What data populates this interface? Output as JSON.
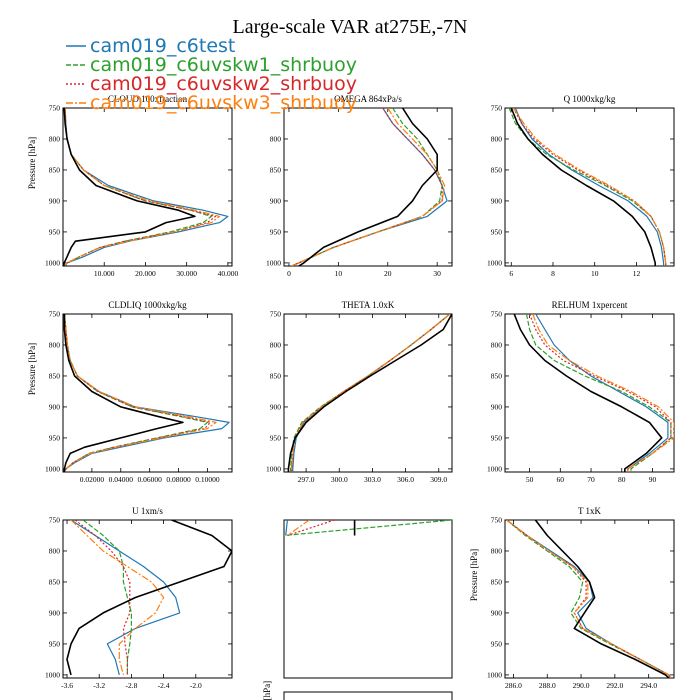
{
  "title": "Large-scale VAR at275E,-7N",
  "legend": [
    {
      "name": "cam019_c6test",
      "color": "#1f77b4",
      "dash": ""
    },
    {
      "name": "cam019_c6uvskw1_shrbuoy",
      "color": "#2ca02c",
      "dash": "5,2"
    },
    {
      "name": "cam019_c6uvskw2_shrbuoy",
      "color": "#d62728",
      "dash": "2,2"
    },
    {
      "name": "cam019_c6uvskw3_shrbuoy",
      "color": "#ff7f0e",
      "dash": "7,2,2,2"
    }
  ],
  "ref_line_color": "#000000",
  "chart_data": [
    {
      "type": "line",
      "title": "CLOUD 100xfraction",
      "ylabel": "Pressure [hPa]",
      "ylim": [
        750,
        1005
      ],
      "yticks": [
        750,
        800,
        850,
        900,
        950,
        1000
      ],
      "yticklabels": [
        "750",
        "800",
        "850",
        "900",
        "950",
        "1000"
      ],
      "xlim": [
        0,
        41
      ],
      "xticks": [
        10,
        20,
        30,
        40
      ],
      "xticklabels": [
        "10.000",
        "20.000",
        "30.000",
        "40.000"
      ],
      "x_title": "",
      "y": [
        750,
        775,
        800,
        825,
        850,
        875,
        900,
        915,
        925,
        935,
        950,
        965,
        975,
        990,
        1000,
        1005
      ],
      "series": [
        {
          "x": [
            0.5,
            0.7,
            1,
            2,
            5,
            11,
            22,
            34,
            40,
            38,
            28,
            16,
            10,
            5,
            1,
            0.5
          ]
        },
        {
          "x": [
            0.5,
            0.6,
            1,
            2,
            5,
            10,
            20,
            31,
            36,
            34,
            26,
            15,
            9,
            4,
            1,
            0.5
          ]
        },
        {
          "x": [
            0.5,
            0.6,
            1,
            2,
            5,
            10,
            20,
            31,
            37,
            35,
            27,
            15,
            9,
            4,
            1,
            0.5
          ]
        },
        {
          "x": [
            0.5,
            0.6,
            1,
            2,
            5,
            10,
            21,
            32,
            38,
            36,
            27,
            16,
            9,
            4,
            1,
            0.5
          ]
        },
        {
          "x": [
            0.3,
            0.5,
            1,
            2,
            4,
            8,
            18,
            28,
            32,
            25,
            20,
            3,
            2,
            1,
            0.3,
            0.2
          ]
        }
      ]
    },
    {
      "type": "line",
      "title": "OMEGA 864xPa/s",
      "ylabel": "",
      "ylim": [
        750,
        1005
      ],
      "yticks": [
        800,
        850,
        900,
        950,
        1000
      ],
      "yticklabels": [
        "800",
        "850",
        "900",
        "950",
        "1000"
      ],
      "xlim": [
        -1,
        33
      ],
      "xticks": [
        0,
        10,
        20,
        30
      ],
      "xticklabels": [
        "0",
        "10",
        "20",
        "30"
      ],
      "x_title": "",
      "y": [
        750,
        775,
        800,
        825,
        850,
        875,
        900,
        925,
        950,
        975,
        1000,
        1005
      ],
      "series": [
        {
          "x": [
            19,
            21,
            24,
            27,
            29.5,
            31,
            32,
            28,
            18,
            9,
            2,
            0.5
          ]
        },
        {
          "x": [
            21,
            23,
            26,
            28,
            30,
            31,
            30.5,
            27,
            18,
            9,
            2,
            0.5
          ]
        },
        {
          "x": [
            19,
            21,
            24,
            27,
            29.5,
            31,
            31,
            27,
            18,
            9,
            2,
            0.5
          ]
        },
        {
          "x": [
            20,
            22,
            25,
            28,
            30,
            31.5,
            31,
            27,
            18,
            9,
            2,
            0.5
          ]
        },
        {
          "x": [
            23,
            25,
            28,
            30,
            30,
            27,
            25,
            22,
            14,
            7,
            3,
            2
          ]
        }
      ]
    },
    {
      "type": "line",
      "title": "Q  1000xkg/kg",
      "ylabel": "",
      "ylim": [
        750,
        1005
      ],
      "yticks": [
        750,
        800,
        850,
        900,
        950,
        1000
      ],
      "yticklabels": [
        "750",
        "800",
        "850",
        "900",
        "950",
        "1000"
      ],
      "xlim": [
        5.7,
        13.8
      ],
      "xticks": [
        6,
        8,
        10,
        12
      ],
      "xticklabels": [
        "6",
        "8",
        "10",
        "12"
      ],
      "x_title": "",
      "y": [
        750,
        775,
        800,
        825,
        850,
        875,
        900,
        925,
        950,
        975,
        1000,
        1005
      ],
      "series": [
        {
          "x": [
            6.2,
            6.5,
            7.0,
            7.8,
            8.9,
            10.2,
            11.6,
            12.5,
            13.0,
            13.2,
            13.3,
            13.3
          ]
        },
        {
          "x": [
            5.9,
            6.2,
            6.8,
            7.7,
            9.0,
            10.5,
            11.8,
            12.7,
            13.1,
            13.3,
            13.4,
            13.4
          ]
        },
        {
          "x": [
            6.1,
            6.5,
            7.1,
            8.0,
            9.2,
            10.6,
            11.9,
            12.7,
            13.1,
            13.3,
            13.4,
            13.4
          ]
        },
        {
          "x": [
            6.1,
            6.6,
            7.2,
            8.1,
            9.3,
            10.7,
            11.9,
            12.7,
            13.1,
            13.3,
            13.4,
            13.4
          ]
        },
        {
          "x": [
            6.0,
            6.3,
            6.8,
            7.5,
            8.4,
            9.6,
            10.9,
            11.8,
            12.4,
            12.7,
            12.9,
            12.9
          ]
        }
      ]
    },
    {
      "type": "line",
      "title": "CLDLIQ 1000xkg/kg",
      "ylabel": "Pressure [hPa]",
      "ylim": [
        750,
        1005
      ],
      "yticks": [
        750,
        800,
        850,
        900,
        950,
        1000
      ],
      "yticklabels": [
        "750",
        "800",
        "850",
        "900",
        "950",
        "1000"
      ],
      "xlim": [
        0,
        0.117
      ],
      "xticks": [
        0.02,
        0.04,
        0.06,
        0.08,
        0.1
      ],
      "xticklabels": [
        "0.02000",
        "0.04000",
        "0.06000",
        "0.08000",
        "0.10000"
      ],
      "x_title": "",
      "y": [
        750,
        775,
        800,
        825,
        850,
        875,
        900,
        915,
        925,
        935,
        950,
        965,
        975,
        990,
        1000,
        1005
      ],
      "series": [
        {
          "x": [
            0.001,
            0.002,
            0.003,
            0.005,
            0.01,
            0.025,
            0.05,
            0.09,
            0.115,
            0.11,
            0.07,
            0.04,
            0.02,
            0.008,
            0.002,
            0.001
          ]
        },
        {
          "x": [
            0.001,
            0.002,
            0.003,
            0.005,
            0.01,
            0.024,
            0.048,
            0.08,
            0.1,
            0.095,
            0.065,
            0.035,
            0.018,
            0.007,
            0.002,
            0.001
          ]
        },
        {
          "x": [
            0.001,
            0.002,
            0.003,
            0.005,
            0.01,
            0.024,
            0.048,
            0.082,
            0.102,
            0.098,
            0.066,
            0.036,
            0.018,
            0.007,
            0.002,
            0.001
          ]
        },
        {
          "x": [
            0.001,
            0.002,
            0.003,
            0.005,
            0.01,
            0.025,
            0.05,
            0.085,
            0.106,
            0.1,
            0.068,
            0.037,
            0.019,
            0.007,
            0.002,
            0.001
          ]
        },
        {
          "x": [
            0.001,
            0.001,
            0.002,
            0.004,
            0.008,
            0.02,
            0.04,
            0.065,
            0.083,
            0.065,
            0.04,
            0.015,
            0.005,
            0.002,
            0.001,
            0.001
          ]
        }
      ]
    },
    {
      "type": "line",
      "title": "THETA  1.0xK",
      "ylabel": "",
      "ylim": [
        750,
        1005
      ],
      "yticks": [
        750,
        800,
        850,
        900,
        950,
        1000
      ],
      "yticklabels": [
        "750",
        "800",
        "850",
        "900",
        "950",
        "1000"
      ],
      "xlim": [
        295.0,
        310.2
      ],
      "xticks": [
        297,
        300,
        303,
        306,
        309
      ],
      "xticklabels": [
        "297.0",
        "300.0",
        "303.0",
        "306.0",
        "309.0"
      ],
      "x_title": "",
      "y": [
        750,
        775,
        800,
        825,
        850,
        875,
        900,
        925,
        950,
        975,
        1000,
        1005
      ],
      "series": [
        {
          "x": [
            310.0,
            308.3,
            306.5,
            304.6,
            302.6,
            300.4,
            298.4,
            296.8,
            296.1,
            295.9,
            295.8,
            295.8
          ]
        },
        {
          "x": [
            310.0,
            308.3,
            306.5,
            304.6,
            302.6,
            300.4,
            298.3,
            296.6,
            295.9,
            295.7,
            295.6,
            295.6
          ]
        },
        {
          "x": [
            310.0,
            308.3,
            306.5,
            304.6,
            302.6,
            300.4,
            298.4,
            296.7,
            296.0,
            295.8,
            295.7,
            295.7
          ]
        },
        {
          "x": [
            310.0,
            308.3,
            306.5,
            304.6,
            302.6,
            300.4,
            298.4,
            296.7,
            296.0,
            295.8,
            295.7,
            295.7
          ]
        },
        {
          "x": [
            310.2,
            309.4,
            307.4,
            305.1,
            302.8,
            300.6,
            298.6,
            297.0,
            296.0,
            295.6,
            295.4,
            295.4
          ]
        }
      ]
    },
    {
      "type": "line",
      "title": "RELHUM  1xpercent",
      "ylabel": "",
      "ylim": [
        750,
        1005
      ],
      "yticks": [
        750,
        800,
        850,
        900,
        950,
        1000
      ],
      "yticklabels": [
        "750",
        "800",
        "850",
        "900",
        "950",
        "1000"
      ],
      "xlim": [
        42,
        97
      ],
      "xticks": [
        50,
        60,
        70,
        80,
        90
      ],
      "xticklabels": [
        "50",
        "60",
        "70",
        "80",
        "90"
      ],
      "x_title": "",
      "y": [
        750,
        775,
        800,
        825,
        850,
        875,
        900,
        925,
        950,
        975,
        1000,
        1005
      ],
      "series": [
        {
          "x": [
            52,
            55,
            58,
            63,
            70,
            79,
            88,
            95,
            95,
            89,
            82,
            82
          ]
        },
        {
          "x": [
            49,
            50,
            52,
            58,
            68,
            80,
            89,
            96,
            96,
            90,
            83,
            83
          ]
        },
        {
          "x": [
            50,
            52,
            55,
            61,
            71,
            82,
            91,
            96,
            96,
            90,
            82,
            82
          ]
        },
        {
          "x": [
            51,
            53,
            56,
            63,
            72,
            83,
            92,
            97,
            97,
            90,
            82,
            82
          ]
        },
        {
          "x": [
            45,
            47,
            50,
            55,
            62,
            70,
            80,
            89,
            93,
            88,
            81,
            81
          ]
        }
      ]
    },
    {
      "type": "line",
      "title": "U  1xm/s",
      "ylabel": "",
      "ylim": [
        750,
        1005
      ],
      "yticks": [
        750,
        800,
        850,
        900,
        950,
        1000
      ],
      "yticklabels": [
        "750",
        "800",
        "850",
        "900",
        "950",
        "1000"
      ],
      "xlim": [
        -3.65,
        -1.55
      ],
      "xticks": [
        -3.6,
        -3.2,
        -2.8,
        -2.4,
        -2.0
      ],
      "xticklabels": [
        "-3.6",
        "-3.2",
        "-2.8",
        "-2.4",
        "-2.0"
      ],
      "x_title": "",
      "y": [
        750,
        775,
        800,
        825,
        850,
        875,
        900,
        925,
        950,
        975,
        1000
      ],
      "series": [
        {
          "x": [
            -3.55,
            -3.25,
            -2.95,
            -2.65,
            -2.4,
            -2.25,
            -2.2,
            -2.75,
            -3.1,
            -3.0,
            -2.95
          ]
        },
        {
          "x": [
            -3.4,
            -3.15,
            -2.95,
            -2.9,
            -2.9,
            -2.85,
            -2.8,
            -2.8,
            -2.82,
            -2.85,
            -2.85
          ]
        },
        {
          "x": [
            -3.5,
            -3.25,
            -3.05,
            -2.9,
            -2.82,
            -2.82,
            -2.82,
            -2.9,
            -2.88,
            -2.85,
            -2.85
          ]
        },
        {
          "x": [
            -3.55,
            -3.35,
            -3.15,
            -2.85,
            -2.55,
            -2.4,
            -2.5,
            -2.75,
            -2.95,
            -2.95,
            -2.9
          ]
        },
        {
          "x": [
            -2.3,
            -1.8,
            -1.55,
            -1.65,
            -2.2,
            -2.75,
            -3.15,
            -3.45,
            -3.55,
            -3.6,
            -3.55
          ]
        }
      ]
    },
    {
      "type": "line",
      "title": "",
      "ylabel": "",
      "ylim": [
        750,
        1005
      ],
      "yticks": [],
      "yticklabels": [],
      "xlim": [
        0,
        1
      ],
      "xticks": [],
      "xticklabels": [],
      "x_title": "",
      "y": [
        750,
        775
      ],
      "series": [
        {
          "x": [
            0.02,
            0.01
          ]
        },
        {
          "x": [
            1.0,
            0.0
          ]
        },
        {
          "x": [
            0.3,
            0.02
          ]
        },
        {
          "x": [
            0.15,
            0.02
          ]
        },
        {
          "x": [
            0.42,
            0.42
          ]
        }
      ]
    },
    {
      "type": "line",
      "title": "T  1xK",
      "ylabel": "Pressure [hPa]",
      "ylim": [
        750,
        1005
      ],
      "yticks": [
        750,
        800,
        850,
        900,
        950,
        1000
      ],
      "yticklabels": [
        "750",
        "800",
        "850",
        "900",
        "950",
        "1000"
      ],
      "xlim": [
        285.5,
        295.5
      ],
      "xticks": [
        286,
        288,
        290,
        292,
        294
      ],
      "xticklabels": [
        "286.0",
        "288.0",
        "290.0",
        "292.0",
        "294.0"
      ],
      "x_title": "",
      "y": [
        750,
        775,
        800,
        825,
        850,
        875,
        900,
        925,
        950,
        975,
        1000,
        1005
      ],
      "series": [
        {
          "x": [
            285.6,
            286.8,
            288.2,
            289.6,
            290.5,
            290.7,
            289.8,
            290.3,
            291.8,
            293.5,
            295.2,
            295.3
          ]
        },
        {
          "x": [
            285.6,
            286.7,
            288.0,
            289.3,
            290.1,
            289.9,
            289.4,
            290.0,
            291.7,
            293.5,
            295.2,
            295.3
          ]
        },
        {
          "x": [
            285.6,
            286.8,
            288.1,
            289.5,
            290.3,
            290.3,
            289.6,
            290.1,
            291.8,
            293.5,
            295.2,
            295.3
          ]
        },
        {
          "x": [
            285.6,
            286.8,
            288.1,
            289.5,
            290.4,
            290.4,
            289.6,
            290.1,
            291.8,
            293.5,
            295.2,
            295.3
          ]
        },
        {
          "x": [
            287.3,
            288.0,
            288.9,
            289.8,
            290.5,
            290.8,
            290.2,
            289.6,
            291.2,
            293.2,
            295.0,
            295.2
          ]
        }
      ]
    },
    {
      "type": "line",
      "title": "",
      "ylabel": "Pressure [hPa]",
      "ylim": [
        750,
        1005
      ],
      "yticks": [],
      "yticklabels": [],
      "xlim": [
        0,
        1
      ],
      "xticks": [],
      "xticklabels": [],
      "x_title": "",
      "y": [],
      "series": []
    }
  ]
}
